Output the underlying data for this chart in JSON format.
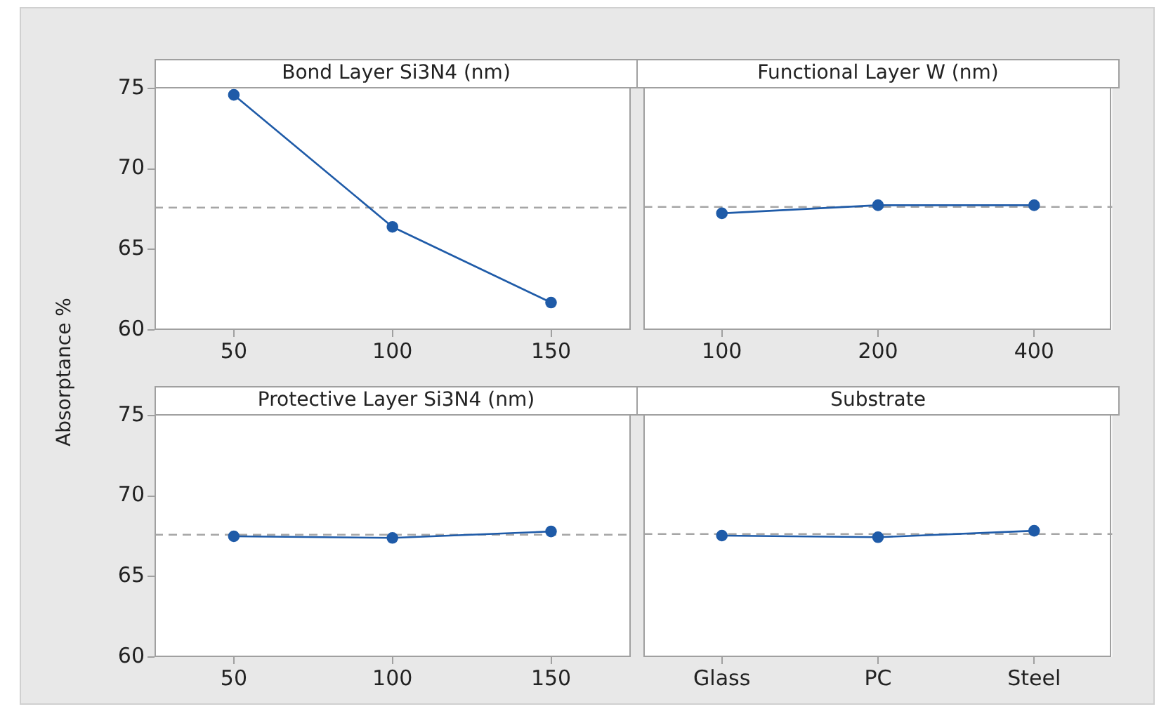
{
  "chart_data": [
    {
      "type": "line",
      "title": "Bond Layer Si3N4 (nm)",
      "ylabel": "Absorptance %",
      "categories": [
        "50",
        "100",
        "150"
      ],
      "values": [
        74.6,
        66.4,
        61.7
      ],
      "color": "#1f5ba8",
      "marker": "circle",
      "ylim": [
        60,
        75
      ],
      "yticks": [
        60,
        65,
        70,
        75
      ],
      "ref_lines": [
        {
          "axis": "y",
          "value": 67.6,
          "color": "#a6a6a6",
          "line_style": "dashed"
        }
      ]
    },
    {
      "type": "line",
      "title": "Functional Layer W (nm)",
      "categories": [
        "100",
        "200",
        "400"
      ],
      "values": [
        67.2,
        67.7,
        67.7
      ],
      "color": "#1f5ba8",
      "marker": "circle",
      "ylim": [
        60,
        75
      ],
      "yticks": [
        60,
        65,
        70,
        75
      ],
      "tick_labels": "x",
      "ref_lines": [
        {
          "axis": "y",
          "value": 67.6,
          "color": "#a6a6a6",
          "line_style": "dashed"
        }
      ]
    },
    {
      "type": "line",
      "title": "Protective Layer Si3N4 (nm)",
      "categories": [
        "50",
        "100",
        "150"
      ],
      "values": [
        67.5,
        67.4,
        67.8
      ],
      "color": "#1f5ba8",
      "marker": "circle",
      "ylim": [
        60,
        75
      ],
      "yticks": [
        60,
        65,
        70,
        75
      ],
      "ref_lines": [
        {
          "axis": "y",
          "value": 67.6,
          "color": "#a6a6a6",
          "line_style": "dashed"
        }
      ]
    },
    {
      "type": "line",
      "title": "Substrate",
      "categories": [
        "Glass",
        "PC",
        "Steel"
      ],
      "values": [
        67.5,
        67.4,
        67.8
      ],
      "color": "#1f5ba8",
      "marker": "circle",
      "ylim": [
        60,
        75
      ],
      "yticks": [
        60,
        65,
        70,
        75
      ],
      "tick_labels": "x",
      "ref_lines": [
        {
          "axis": "y",
          "value": 67.6,
          "color": "#a6a6a6",
          "line_style": "dashed"
        }
      ]
    }
  ]
}
